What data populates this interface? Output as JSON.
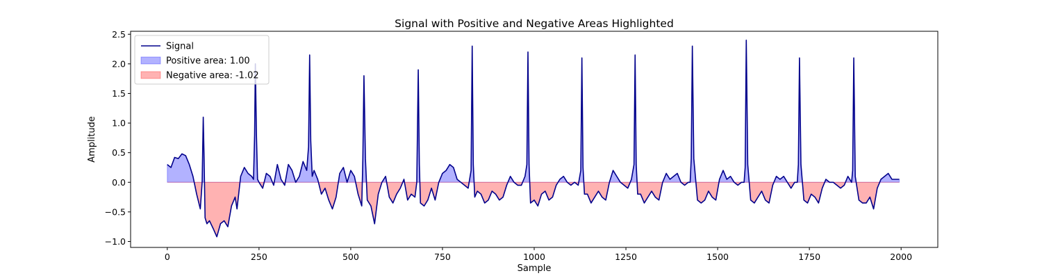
{
  "chart_data": {
    "type": "line",
    "title": "Signal with Positive and Negative Areas Highlighted",
    "xlabel": "Sample",
    "ylabel": "Amplitude",
    "xlim": [
      -100,
      2100
    ],
    "ylim": [
      -1.1,
      2.55
    ],
    "xticks": [
      0,
      250,
      500,
      750,
      1000,
      1250,
      1500,
      1750,
      2000
    ],
    "yticks": [
      -1.0,
      -0.5,
      0.0,
      0.5,
      1.0,
      1.5,
      2.0,
      2.5
    ],
    "grid": false,
    "legend_position": "top-left",
    "colors": {
      "signal": "#00008b",
      "positive_fill": "#0000ff",
      "negative_fill": "#ff0000",
      "fill_alpha": 0.3
    },
    "legend": [
      {
        "label": "Signal",
        "kind": "line",
        "color": "#00008b"
      },
      {
        "label": "Positive area: 1.00",
        "kind": "patch",
        "color": "#0000ff"
      },
      {
        "label": "Negative area: -1.02",
        "kind": "patch",
        "color": "#ff0000"
      }
    ],
    "series": [
      {
        "name": "Signal",
        "x": [
          0,
          10,
          20,
          30,
          40,
          50,
          60,
          70,
          80,
          90,
          95,
          98,
          100,
          103,
          108,
          115,
          125,
          135,
          145,
          155,
          165,
          175,
          185,
          190,
          200,
          210,
          220,
          230,
          235,
          238,
          240,
          243,
          246,
          250,
          260,
          270,
          280,
          290,
          300,
          310,
          320,
          330,
          340,
          350,
          360,
          370,
          380,
          385,
          388,
          391,
          395,
          400,
          410,
          420,
          430,
          440,
          450,
          460,
          470,
          480,
          490,
          500,
          510,
          520,
          530,
          533,
          536,
          540,
          545,
          555,
          565,
          575,
          585,
          595,
          605,
          615,
          625,
          635,
          645,
          655,
          665,
          675,
          680,
          684,
          687,
          690,
          700,
          710,
          720,
          730,
          740,
          750,
          760,
          770,
          780,
          790,
          800,
          810,
          820,
          828,
          831,
          834,
          838,
          845,
          855,
          865,
          875,
          885,
          895,
          905,
          915,
          925,
          935,
          945,
          955,
          965,
          975,
          980,
          983,
          986,
          990,
          1000,
          1010,
          1020,
          1030,
          1040,
          1050,
          1060,
          1070,
          1080,
          1090,
          1100,
          1110,
          1120,
          1127,
          1130,
          1133,
          1137,
          1145,
          1155,
          1165,
          1175,
          1185,
          1195,
          1205,
          1215,
          1225,
          1235,
          1245,
          1255,
          1265,
          1272,
          1275,
          1278,
          1282,
          1290,
          1300,
          1310,
          1320,
          1330,
          1340,
          1350,
          1360,
          1370,
          1380,
          1390,
          1400,
          1410,
          1420,
          1425,
          1428,
          1431,
          1435,
          1445,
          1455,
          1465,
          1475,
          1485,
          1495,
          1505,
          1515,
          1525,
          1535,
          1545,
          1555,
          1565,
          1572,
          1575,
          1578,
          1582,
          1590,
          1600,
          1610,
          1620,
          1630,
          1640,
          1650,
          1660,
          1670,
          1680,
          1690,
          1700,
          1710,
          1717,
          1720,
          1723,
          1727,
          1735,
          1745,
          1755,
          1765,
          1775,
          1785,
          1795,
          1805,
          1815,
          1825,
          1835,
          1845,
          1855,
          1865,
          1868,
          1871,
          1875,
          1885,
          1895,
          1905,
          1915,
          1925,
          1935,
          1945,
          1955,
          1965,
          1975,
          1985,
          1995
        ],
        "y": [
          0.3,
          0.25,
          0.42,
          0.4,
          0.48,
          0.45,
          0.3,
          0.1,
          -0.2,
          -0.45,
          0.0,
          1.1,
          0.5,
          -0.6,
          -0.7,
          -0.65,
          -0.78,
          -0.92,
          -0.7,
          -0.65,
          -0.75,
          -0.4,
          -0.25,
          -0.45,
          0.1,
          0.25,
          0.15,
          0.1,
          0.05,
          0.8,
          2.0,
          0.8,
          0.05,
          0.0,
          -0.1,
          0.15,
          0.1,
          -0.05,
          0.3,
          0.05,
          -0.05,
          0.3,
          0.2,
          0.0,
          0.1,
          0.35,
          0.2,
          0.6,
          2.15,
          0.7,
          0.1,
          0.2,
          0.05,
          -0.2,
          -0.1,
          -0.3,
          -0.45,
          -0.25,
          0.15,
          0.25,
          0.0,
          0.2,
          0.1,
          -0.2,
          -0.4,
          0.4,
          1.8,
          0.4,
          -0.3,
          -0.4,
          -0.7,
          -0.2,
          0.0,
          0.1,
          -0.25,
          -0.35,
          -0.2,
          -0.1,
          0.05,
          -0.3,
          -0.2,
          -0.25,
          0.0,
          1.9,
          0.3,
          -0.35,
          -0.4,
          -0.3,
          -0.1,
          -0.3,
          0.0,
          0.15,
          0.2,
          0.3,
          0.25,
          0.05,
          0.0,
          -0.05,
          -0.1,
          0.2,
          2.3,
          0.3,
          -0.25,
          -0.15,
          -0.2,
          -0.35,
          -0.3,
          -0.15,
          -0.2,
          -0.3,
          -0.25,
          -0.05,
          0.1,
          0.0,
          -0.05,
          -0.05,
          0.1,
          0.3,
          2.2,
          0.3,
          -0.35,
          -0.3,
          -0.4,
          -0.2,
          -0.15,
          -0.3,
          -0.25,
          -0.05,
          0.05,
          0.1,
          0.0,
          -0.05,
          0.0,
          -0.05,
          0.2,
          2.1,
          0.25,
          -0.2,
          -0.2,
          -0.35,
          -0.25,
          -0.15,
          -0.25,
          -0.3,
          0.0,
          0.2,
          0.1,
          0.0,
          -0.05,
          -0.1,
          0.05,
          0.3,
          2.15,
          0.3,
          -0.2,
          -0.2,
          -0.35,
          -0.25,
          -0.15,
          -0.25,
          -0.3,
          0.0,
          0.15,
          0.05,
          0.1,
          0.15,
          0.0,
          -0.05,
          0.0,
          0.0,
          0.4,
          2.3,
          0.4,
          -0.3,
          -0.35,
          -0.3,
          -0.15,
          -0.25,
          -0.3,
          0.05,
          0.2,
          0.05,
          0.1,
          0.0,
          -0.05,
          0.0,
          0.0,
          0.25,
          2.4,
          0.3,
          -0.3,
          -0.35,
          -0.25,
          -0.15,
          -0.3,
          -0.35,
          -0.05,
          0.1,
          0.05,
          0.1,
          0.0,
          -0.1,
          0.0,
          0.0,
          0.3,
          2.1,
          0.3,
          -0.3,
          -0.35,
          -0.2,
          -0.25,
          -0.35,
          -0.1,
          0.05,
          0.0,
          0.0,
          -0.05,
          -0.1,
          -0.05,
          0.1,
          0.0,
          0.2,
          2.1,
          0.1,
          -0.3,
          -0.35,
          -0.35,
          -0.25,
          -0.45,
          -0.1,
          0.05,
          0.1,
          0.15,
          0.05,
          0.05,
          0.05
        ]
      }
    ]
  }
}
